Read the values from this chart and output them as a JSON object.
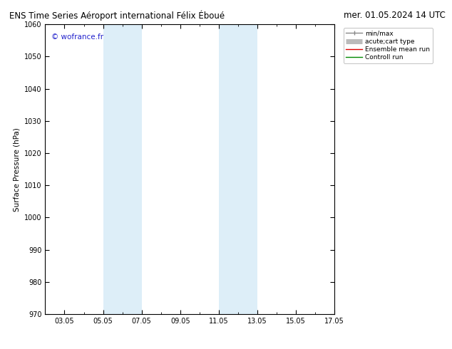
{
  "title_left": "ENS Time Series Aéroport international Félix Éboué",
  "title_right": "mer. 01.05.2024 14 UTC",
  "ylabel": "Surface Pressure (hPa)",
  "ylim": [
    970,
    1060
  ],
  "yticks": [
    970,
    980,
    990,
    1000,
    1010,
    1020,
    1030,
    1040,
    1050,
    1060
  ],
  "xlim_num": [
    0,
    15
  ],
  "xtick_labels": [
    "03.05",
    "05.05",
    "07.05",
    "09.05",
    "11.05",
    "13.05",
    "15.05",
    "17.05"
  ],
  "xtick_positions": [
    1,
    3,
    5,
    7,
    9,
    11,
    13,
    15
  ],
  "shaded_bands": [
    {
      "xmin": 3.0,
      "xmax": 5.0,
      "color": "#ddeef8"
    },
    {
      "xmin": 9.0,
      "xmax": 11.0,
      "color": "#ddeef8"
    }
  ],
  "watermark": "© wofrance.fr",
  "watermark_color": "#2222cc",
  "legend_entries": [
    {
      "label": "min/max",
      "color": "#888888",
      "lw": 1.0
    },
    {
      "label": "acute;cart type",
      "color": "#bbbbbb",
      "lw": 5
    },
    {
      "label": "Ensemble mean run",
      "color": "#dd0000",
      "lw": 1.0
    },
    {
      "label": "Controll run",
      "color": "#008800",
      "lw": 1.0
    }
  ],
  "background_color": "#ffffff",
  "plot_bg_color": "#ffffff",
  "title_fontsize": 8.5,
  "axis_label_fontsize": 7.5,
  "tick_fontsize": 7,
  "watermark_fontsize": 7.5,
  "legend_fontsize": 6.5
}
